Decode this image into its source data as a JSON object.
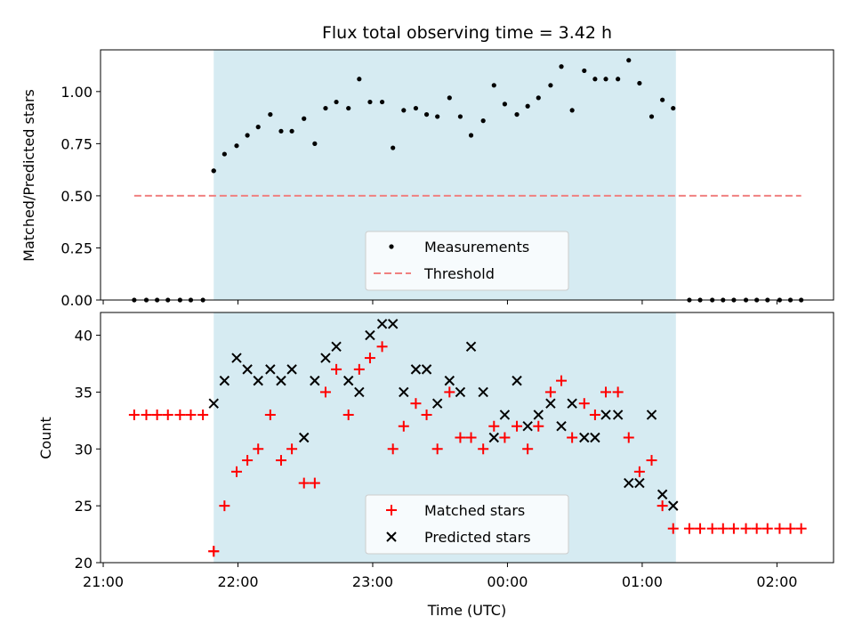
{
  "chart_data": [
    {
      "type": "scatter",
      "title": "Flux total observing time = 3.42 h",
      "ylabel": "Matched/Predicted stars",
      "ylim": [
        0,
        1.2
      ],
      "yticks": [
        "0.00",
        "0.25",
        "0.50",
        "0.75",
        "1.00"
      ],
      "ytick_values": [
        0,
        0.25,
        0.5,
        0.75,
        1.0
      ],
      "x_unit": "hours since 21:00 UTC on the x axis",
      "x": [
        0.23,
        0.32,
        0.4,
        0.48,
        0.57,
        0.65,
        0.74,
        0.82,
        0.82,
        0.9,
        0.99,
        1.07,
        1.15,
        1.24,
        1.32,
        1.4,
        1.49,
        1.57,
        1.65,
        1.73,
        1.82,
        1.9,
        1.98,
        2.07,
        2.15,
        2.23,
        2.32,
        2.4,
        2.48,
        2.57,
        2.65,
        2.73,
        2.82,
        2.9,
        2.98,
        3.07,
        3.15,
        3.23,
        3.32,
        3.4,
        3.48,
        3.57,
        3.65,
        3.73,
        3.82,
        3.9,
        3.98,
        4.07,
        4.15,
        4.23,
        4.35,
        4.43,
        4.52,
        4.6,
        4.68,
        4.77,
        4.85,
        4.93,
        5.02,
        5.1,
        5.18
      ],
      "series": [
        {
          "name": "Measurements",
          "color": "#000000",
          "marker": "dot",
          "values": [
            0,
            0,
            0,
            0,
            0,
            0,
            0,
            0.62,
            0.62,
            0.7,
            0.74,
            0.79,
            0.83,
            0.89,
            0.81,
            0.81,
            0.87,
            0.75,
            0.92,
            0.95,
            0.92,
            1.06,
            0.95,
            0.95,
            0.73,
            0.91,
            0.92,
            0.89,
            0.88,
            0.97,
            0.88,
            0.79,
            0.86,
            1.03,
            0.94,
            0.89,
            0.93,
            0.97,
            1.03,
            1.12,
            0.91,
            1.1,
            1.06,
            1.06,
            1.06,
            1.15,
            1.04,
            0.88,
            0.96,
            0.92,
            0,
            0,
            0,
            0,
            0,
            0,
            0,
            0,
            0,
            0,
            0
          ]
        },
        {
          "name": "Threshold",
          "color": "#f08080",
          "style": "dashed",
          "x": [
            0.23,
            5.18
          ],
          "values": [
            0.5,
            0.5
          ]
        }
      ],
      "shaded_region": {
        "x": [
          0.82,
          4.25
        ],
        "color": "#add8e6"
      },
      "legend": "lower-center"
    },
    {
      "type": "scatter",
      "xlabel": "Time (UTC)",
      "ylabel": "Count",
      "ylim": [
        20,
        42
      ],
      "yticks": [
        "20",
        "25",
        "30",
        "35",
        "40"
      ],
      "ytick_values": [
        20,
        25,
        30,
        35,
        40
      ],
      "xticks": [
        "21:00",
        "22:00",
        "23:00",
        "00:00",
        "01:00",
        "02:00"
      ],
      "xtick_values": [
        0,
        1,
        2,
        3,
        4,
        5
      ],
      "xlim": [
        -0.02,
        5.42
      ],
      "series": [
        {
          "name": "Matched stars",
          "color": "#ff0000",
          "marker": "plus",
          "x": [
            0.23,
            0.32,
            0.4,
            0.48,
            0.57,
            0.65,
            0.74,
            0.82,
            0.82,
            0.9,
            0.99,
            1.07,
            1.15,
            1.24,
            1.32,
            1.4,
            1.49,
            1.57,
            1.65,
            1.73,
            1.82,
            1.9,
            1.98,
            2.07,
            2.15,
            2.23,
            2.32,
            2.4,
            2.48,
            2.57,
            2.65,
            2.73,
            2.82,
            2.9,
            2.98,
            3.07,
            3.15,
            3.23,
            3.32,
            3.4,
            3.48,
            3.57,
            3.65,
            3.73,
            3.82,
            3.9,
            3.98,
            4.07,
            4.15,
            4.23,
            4.35,
            4.43,
            4.52,
            4.6,
            4.68,
            4.77,
            4.85,
            4.93,
            5.02,
            5.1,
            5.18
          ],
          "values": [
            33,
            33,
            33,
            33,
            33,
            33,
            33,
            21,
            21,
            25,
            28,
            29,
            30,
            33,
            29,
            30,
            27,
            27,
            35,
            37,
            33,
            37,
            38,
            39,
            30,
            32,
            34,
            33,
            30,
            35,
            31,
            31,
            30,
            32,
            31,
            32,
            30,
            32,
            35,
            36,
            31,
            34,
            33,
            35,
            35,
            31,
            28,
            29,
            25,
            23,
            23,
            23,
            23,
            23,
            23,
            23,
            23,
            23,
            23,
            23,
            23
          ]
        },
        {
          "name": "Predicted stars",
          "color": "#000000",
          "marker": "x",
          "x": [
            0.82,
            0.9,
            0.99,
            1.07,
            1.15,
            1.24,
            1.32,
            1.4,
            1.49,
            1.57,
            1.65,
            1.73,
            1.82,
            1.9,
            1.98,
            2.07,
            2.15,
            2.23,
            2.32,
            2.4,
            2.48,
            2.57,
            2.65,
            2.73,
            2.82,
            2.9,
            2.98,
            3.07,
            3.15,
            3.23,
            3.32,
            3.4,
            3.48,
            3.57,
            3.65,
            3.73,
            3.82,
            3.9,
            3.98,
            4.07,
            4.15,
            4.23
          ],
          "values": [
            34,
            36,
            38,
            37,
            36,
            37,
            36,
            37,
            31,
            36,
            38,
            39,
            36,
            35,
            40,
            41,
            41,
            35,
            37,
            37,
            34,
            36,
            35,
            39,
            35,
            31,
            33,
            36,
            32,
            33,
            34,
            32,
            34,
            31,
            31,
            33,
            33,
            27,
            27,
            33,
            26,
            25
          ]
        }
      ],
      "shaded_region": {
        "x": [
          0.82,
          4.25
        ],
        "color": "#add8e6"
      },
      "legend": "lower-center"
    }
  ]
}
